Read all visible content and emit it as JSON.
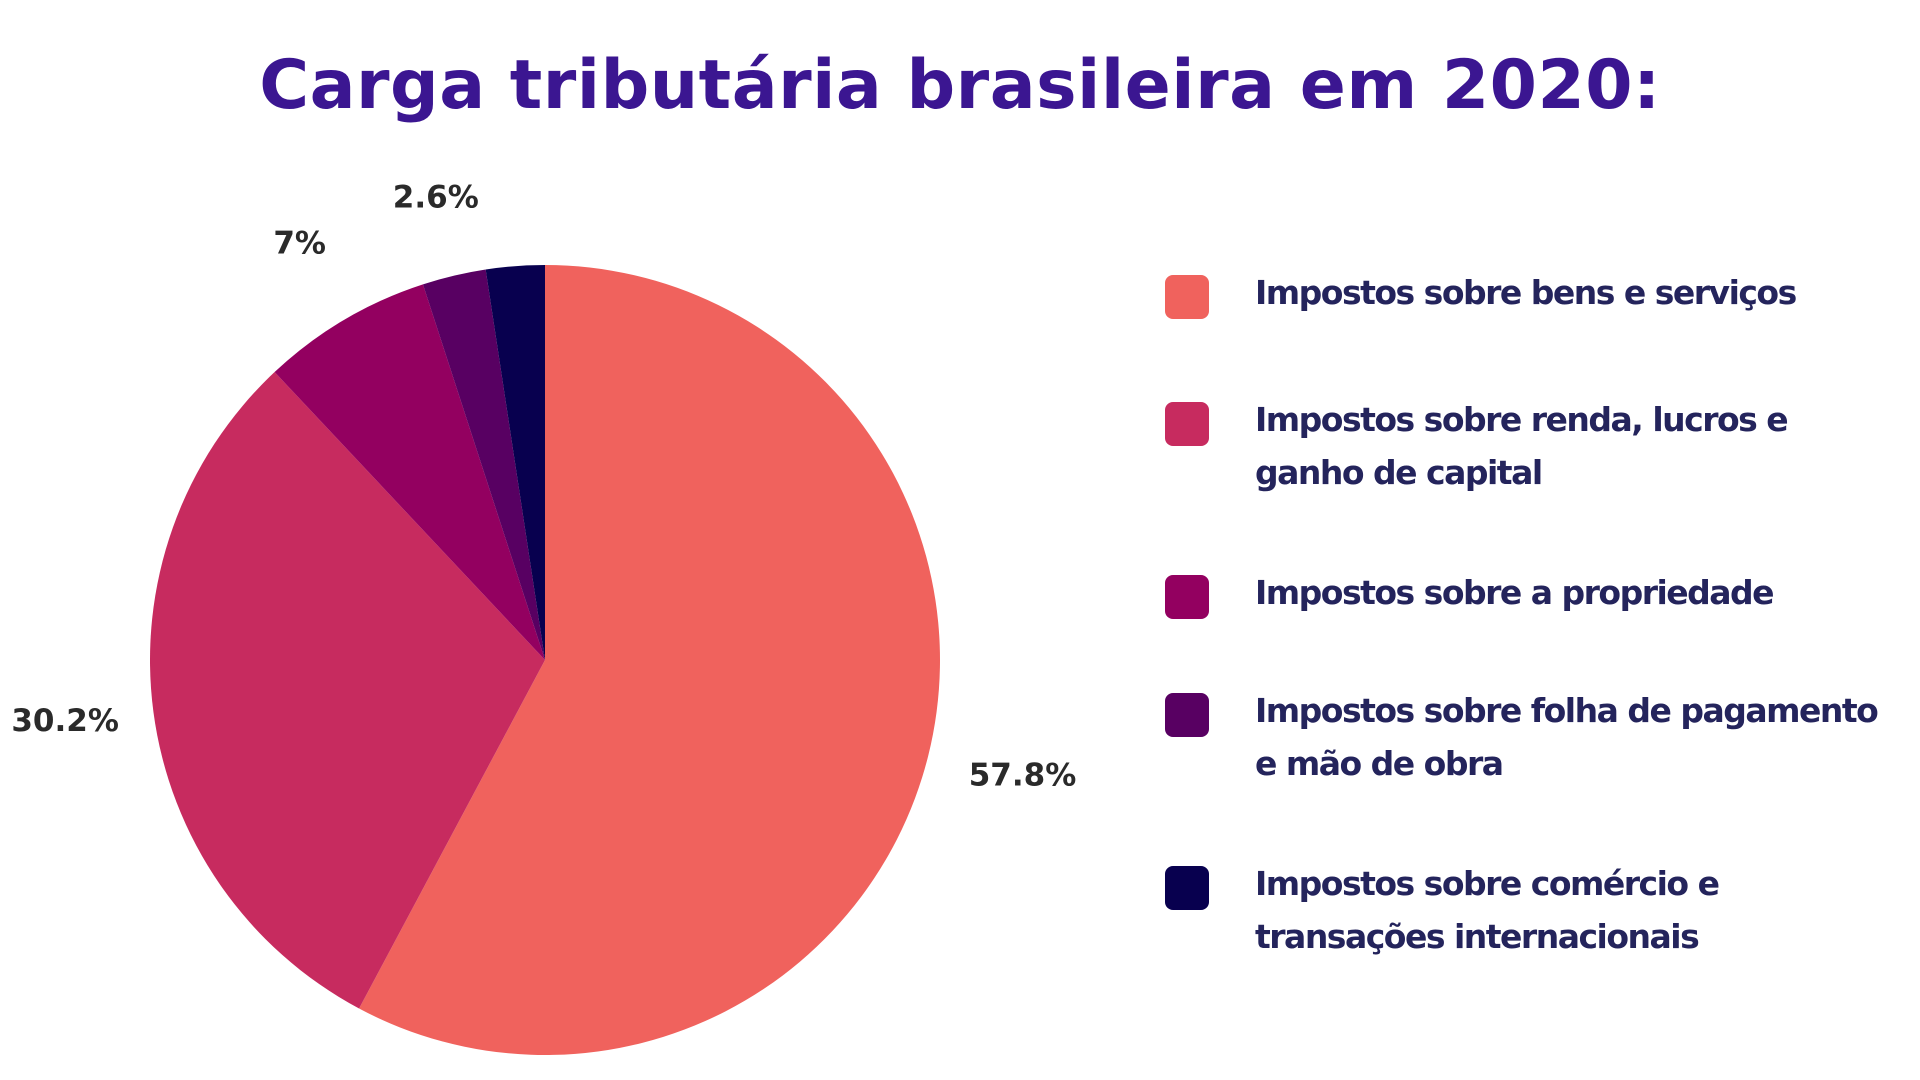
{
  "chart_data": {
    "type": "pie",
    "title": "Carga tributária brasileira em 2020:",
    "legend_position": "right",
    "slices": [
      {
        "label": "Impostos sobre bens e serviços",
        "value": 57.8,
        "display": "57.8%",
        "color": "#f0625d"
      },
      {
        "label": "Impostos sobre renda, lucros e ganho de capital",
        "value": 30.2,
        "display": "30.2%",
        "color": "#c72b5f"
      },
      {
        "label": "Impostos sobre a propriedade",
        "value": 7,
        "display": "7%",
        "color": "#930060"
      },
      {
        "label": "Impostos sobre folha de pagamento e mão de obra",
        "value": 2.6,
        "display": "2.6%",
        "color": "#580062"
      },
      {
        "label": "Impostos sobre comércio e transações internacionais",
        "value": 2.4,
        "display": "",
        "color": "#08004f"
      }
    ]
  }
}
